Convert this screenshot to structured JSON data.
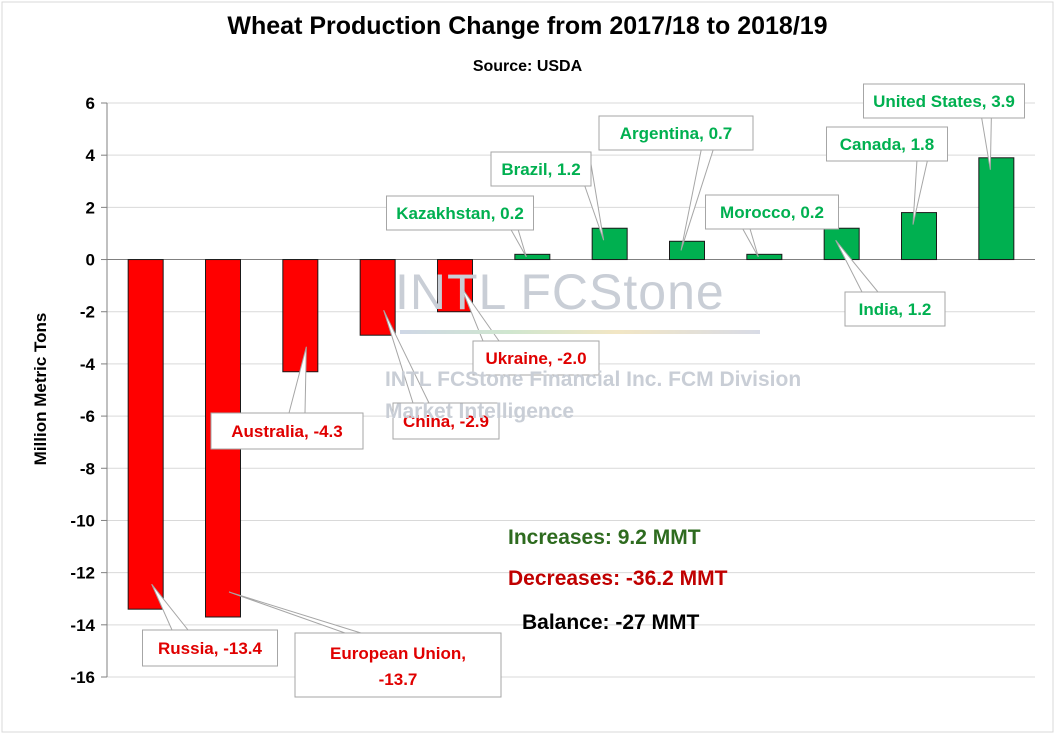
{
  "chart_data": {
    "type": "bar",
    "title": "Wheat Production Change from 2017/18 to 2018/19",
    "subtitle": "Source: USDA",
    "ylabel": "Million Metric Tons",
    "xlabel": "",
    "ylim": [
      -16,
      6
    ],
    "yticks": [
      6,
      4,
      2,
      0,
      -2,
      -4,
      -6,
      -8,
      -10,
      -12,
      -14,
      -16
    ],
    "grid": true,
    "categories": [
      "Russia",
      "European Union",
      "Australia",
      "China",
      "Ukraine",
      "Kazakhstan",
      "Brazil",
      "Argentina",
      "Morocco",
      "India",
      "Canada",
      "United States"
    ],
    "values": [
      -13.4,
      -13.7,
      -4.3,
      -2.9,
      -2.0,
      0.2,
      1.2,
      0.7,
      0.2,
      1.2,
      1.8,
      3.9
    ],
    "data_labels": [
      "Russia, -13.4",
      "European Union, -13.7",
      "Australia, -4.3",
      "China, -2.9",
      "Ukraine, -2.0",
      "Kazakhstan, 0.2",
      "Brazil, 1.2",
      "Argentina, 0.7",
      "Morocco, 0.2",
      "India, 1.2",
      "Canada, 1.8",
      "United States, 3.9"
    ],
    "colors": {
      "decrease": "#ff0000",
      "increase": "#00b050",
      "increase_text": "#00b050",
      "decrease_text": "#e00000"
    }
  },
  "summary": {
    "increases": "Increases: 9.2 MMT",
    "decreases": "Decreases: -36.2 MMT",
    "balance": "Balance: -27 MMT",
    "increases_color": "#2e6b1f",
    "decreases_color": "#c00000",
    "balance_color": "#000000"
  },
  "watermark": {
    "logo": "INTL FCStone",
    "line1": "INTL FCStone Financial Inc. FCM Division",
    "line2": "Market Intelligence"
  }
}
